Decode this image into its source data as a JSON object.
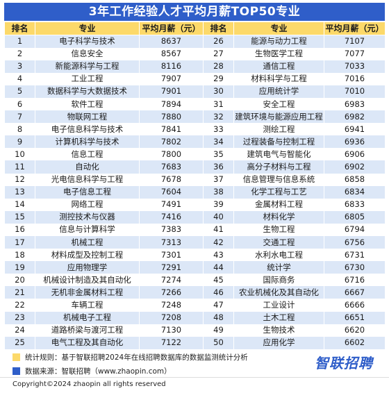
{
  "title": "3年工作经验人才平均月薪TOP50专业",
  "headers": [
    "排名",
    "专业",
    "平均月薪（元）",
    "排名",
    "专业",
    "平均月薪（元）"
  ],
  "rows": [
    {
      "left": {
        "rank": "1",
        "major": "电子科学与技术",
        "salary": "8637"
      },
      "right": {
        "rank": "26",
        "major": "能源与动力工程",
        "salary": "7107"
      }
    },
    {
      "left": {
        "rank": "2",
        "major": "信息安全",
        "salary": "8567"
      },
      "right": {
        "rank": "27",
        "major": "生物医学工程",
        "salary": "7077"
      }
    },
    {
      "left": {
        "rank": "3",
        "major": "新能源科学与工程",
        "salary": "8116"
      },
      "right": {
        "rank": "28",
        "major": "通信工程",
        "salary": "7033"
      }
    },
    {
      "left": {
        "rank": "4",
        "major": "工业工程",
        "salary": "7907"
      },
      "right": {
        "rank": "29",
        "major": "材料科学与工程",
        "salary": "7016"
      }
    },
    {
      "left": {
        "rank": "5",
        "major": "数据科学与大数据技术",
        "salary": "7901"
      },
      "right": {
        "rank": "30",
        "major": "应用统计学",
        "salary": "7010"
      }
    },
    {
      "left": {
        "rank": "6",
        "major": "软件工程",
        "salary": "7894"
      },
      "right": {
        "rank": "31",
        "major": "安全工程",
        "salary": "6983"
      }
    },
    {
      "left": {
        "rank": "7",
        "major": "物联网工程",
        "salary": "7880"
      },
      "right": {
        "rank": "32",
        "major": "建筑环境与能源应用工程",
        "salary": "6982"
      }
    },
    {
      "left": {
        "rank": "8",
        "major": "电子信息科学与技术",
        "salary": "7841"
      },
      "right": {
        "rank": "33",
        "major": "测绘工程",
        "salary": "6941"
      }
    },
    {
      "left": {
        "rank": "9",
        "major": "计算机科学与技术",
        "salary": "7802"
      },
      "right": {
        "rank": "34",
        "major": "过程装备与控制工程",
        "salary": "6936"
      }
    },
    {
      "left": {
        "rank": "10",
        "major": "信息工程",
        "salary": "7800"
      },
      "right": {
        "rank": "35",
        "major": "建筑电气与智能化",
        "salary": "6906"
      }
    },
    {
      "left": {
        "rank": "11",
        "major": "自动化",
        "salary": "7683"
      },
      "right": {
        "rank": "36",
        "major": "高分子材料与工程",
        "salary": "6902"
      }
    },
    {
      "left": {
        "rank": "12",
        "major": "光电信息科学与工程",
        "salary": "7678"
      },
      "right": {
        "rank": "37",
        "major": "信息管理与信息系统",
        "salary": "6858"
      }
    },
    {
      "left": {
        "rank": "13",
        "major": "电子信息工程",
        "salary": "7604"
      },
      "right": {
        "rank": "38",
        "major": "化学工程与工艺",
        "salary": "6834"
      }
    },
    {
      "left": {
        "rank": "14",
        "major": "网络工程",
        "salary": "7491"
      },
      "right": {
        "rank": "39",
        "major": "金属材料工程",
        "salary": "6833"
      }
    },
    {
      "left": {
        "rank": "15",
        "major": "测控技术与仪器",
        "salary": "7416"
      },
      "right": {
        "rank": "40",
        "major": "材料化学",
        "salary": "6805"
      }
    },
    {
      "left": {
        "rank": "16",
        "major": "信息与计算科学",
        "salary": "7383"
      },
      "right": {
        "rank": "41",
        "major": "生物工程",
        "salary": "6794"
      }
    },
    {
      "left": {
        "rank": "17",
        "major": "机械工程",
        "salary": "7313"
      },
      "right": {
        "rank": "42",
        "major": "交通工程",
        "salary": "6756"
      }
    },
    {
      "left": {
        "rank": "18",
        "major": "材料成型及控制工程",
        "salary": "7301"
      },
      "right": {
        "rank": "43",
        "major": "水利水电工程",
        "salary": "6731"
      }
    },
    {
      "left": {
        "rank": "19",
        "major": "应用物理学",
        "salary": "7291"
      },
      "right": {
        "rank": "44",
        "major": "统计学",
        "salary": "6730"
      }
    },
    {
      "left": {
        "rank": "20",
        "major": "机械设计制造及其自动化",
        "salary": "7274"
      },
      "right": {
        "rank": "45",
        "major": "国际商务",
        "salary": "6716"
      }
    },
    {
      "left": {
        "rank": "21",
        "major": "无机非金属材料工程",
        "salary": "7266"
      },
      "right": {
        "rank": "46",
        "major": "农业机械化及其自动化",
        "salary": "6667"
      }
    },
    {
      "left": {
        "rank": "22",
        "major": "车辆工程",
        "salary": "7248"
      },
      "right": {
        "rank": "47",
        "major": "工业设计",
        "salary": "6666"
      }
    },
    {
      "left": {
        "rank": "23",
        "major": "机械电子工程",
        "salary": "7208"
      },
      "right": {
        "rank": "48",
        "major": "土木工程",
        "salary": "6651"
      }
    },
    {
      "left": {
        "rank": "24",
        "major": "道路桥梁与渡河工程",
        "salary": "7130"
      },
      "right": {
        "rank": "49",
        "major": "生物技术",
        "salary": "6620"
      }
    },
    {
      "left": {
        "rank": "25",
        "major": "电气工程及其自动化",
        "salary": "7122"
      },
      "right": {
        "rank": "50",
        "major": "应用化学",
        "salary": "6602"
      }
    }
  ],
  "notes": [
    {
      "text": "统计规则：基于智联招聘2024年在线招聘数据库的数据监测统计分析",
      "color": "#fcd96a"
    },
    {
      "text": "数据来源：智联招聘（www.zhaopin.com）",
      "color": "#2f5ec9"
    }
  ],
  "logo_text": "智联招聘",
  "copyright": "Copyright©2024 zhaopin all rights reserved",
  "colors": {
    "accent": "#2f5ec9",
    "header": "#fcd96a",
    "stripe": "#dce7f7"
  }
}
